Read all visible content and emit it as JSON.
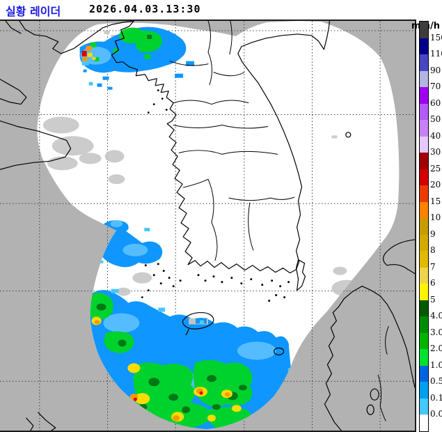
{
  "header": {
    "title": "실황 레이더",
    "datetime": "2026.04.03.13:30",
    "unit": "mm/h",
    "title_color": "#1a1ae6"
  },
  "legend": {
    "unit": "mm/h",
    "segments": [
      {
        "color": "#3c3c3c",
        "label": "150"
      },
      {
        "color": "#00008c",
        "label": "110"
      },
      {
        "color": "#4747c3",
        "label": "90"
      },
      {
        "color": "#b4b4e1",
        "label": "70"
      },
      {
        "color": "#a000f0",
        "label": "60"
      },
      {
        "color": "#b45af5",
        "label": "50"
      },
      {
        "color": "#c882f5",
        "label": "40"
      },
      {
        "color": "#e6c8fa",
        "label": "30"
      },
      {
        "color": "#a00000",
        "label": "25"
      },
      {
        "color": "#d20000",
        "label": "20"
      },
      {
        "color": "#eb3c00",
        "label": "15"
      },
      {
        "color": "#ff8200",
        "label": "10"
      },
      {
        "color": "#c89b00",
        "label": "9"
      },
      {
        "color": "#d2aa00",
        "label": "8"
      },
      {
        "color": "#e1b900",
        "label": "7"
      },
      {
        "color": "#f0d24b",
        "label": "6"
      },
      {
        "color": "#fff500",
        "label": "5"
      },
      {
        "color": "#005a00",
        "label": "4.0"
      },
      {
        "color": "#008c00",
        "label": "3.0"
      },
      {
        "color": "#00b400",
        "label": "2.0"
      },
      {
        "color": "#00e132",
        "label": "1.0"
      },
      {
        "color": "#0064e1",
        "label": "0.5"
      },
      {
        "color": "#00a0f0",
        "label": "0.1"
      },
      {
        "color": "#46c8fa",
        "label": "0.0"
      },
      {
        "color": "#ffffff",
        "label": ""
      }
    ]
  },
  "palette": {
    "sea_outside": "#b2b2b2",
    "coverage": "#ffffff",
    "coastline": "#000000",
    "grid": "#3c3c3c",
    "clutter": "#c3c3c3",
    "rain_cyan": "#46c8fa",
    "rain_lightblue": "#55bdff",
    "rain_blue": "#0f96ff",
    "rain_green": "#00d22d",
    "rain_darkgreen": "#007814",
    "rain_yellow": "#ffdc00",
    "rain_orange": "#ff9600",
    "rain_red": "#e10000"
  }
}
